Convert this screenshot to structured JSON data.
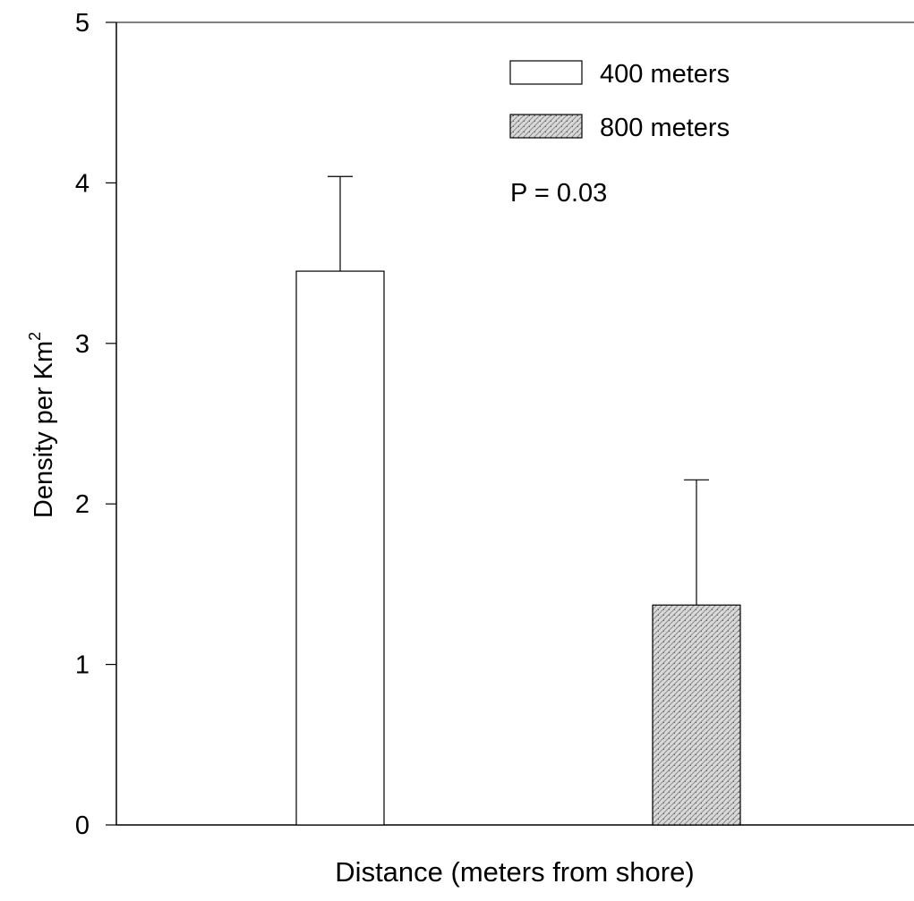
{
  "chart_data": {
    "type": "bar",
    "xlabel": "Distance (meters from shore)",
    "ylabel": "Density per Km",
    "ylabel_superscript": "2",
    "ylim": [
      0,
      5
    ],
    "yticks": [
      0,
      1,
      2,
      3,
      4,
      5
    ],
    "grid": false,
    "legend_position": "top-right",
    "annotation": "P = 0.03",
    "series": [
      {
        "name": "400 meters",
        "value": 3.45,
        "error": 0.59,
        "fill": "#ffffff",
        "pattern": "none"
      },
      {
        "name": "800 meters",
        "value": 1.37,
        "error": 0.78,
        "fill": "#bdbdbd",
        "pattern": "stipple"
      }
    ]
  }
}
